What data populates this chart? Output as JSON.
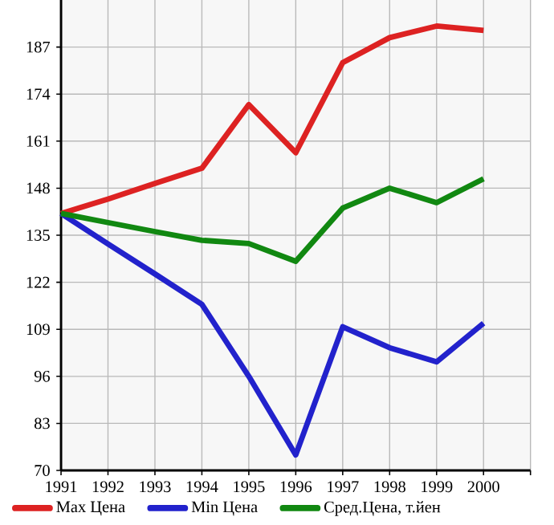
{
  "chart_data": {
    "type": "line",
    "x": [
      1991,
      1992,
      1993,
      1994,
      1995,
      1996,
      1997,
      1998,
      1999,
      2000
    ],
    "xlim": [
      1991,
      2001
    ],
    "xticks": [
      1991,
      1992,
      1993,
      1994,
      1995,
      1996,
      1997,
      1998,
      1999,
      2000,
      {
        "value": 2001,
        "label": null
      }
    ],
    "ylim": [
      70,
      200
    ],
    "yticks": [
      70,
      83,
      96,
      109,
      122,
      135,
      148,
      161,
      174,
      187
    ],
    "grid": true,
    "legend": "bottom",
    "marker": "none",
    "line_style": "solid",
    "series": [
      {
        "name": "Max Цена",
        "color": "#dd2222",
        "values": [
          141,
          145,
          149.3,
          153.5,
          171.1,
          157.8,
          182.7,
          189.6,
          192.8,
          191.6
        ]
      },
      {
        "name": "Min Цена",
        "color": "#2222cc",
        "values": [
          141,
          132.6,
          124.3,
          115.9,
          96,
          74.3,
          109.7,
          103.9,
          100,
          110.7
        ]
      },
      {
        "name": "Сред.Цена, т.йен",
        "color": "#118811",
        "values": [
          141,
          138.5,
          136,
          133.6,
          132.7,
          127.8,
          142.5,
          148,
          144,
          150.6
        ]
      }
    ]
  }
}
